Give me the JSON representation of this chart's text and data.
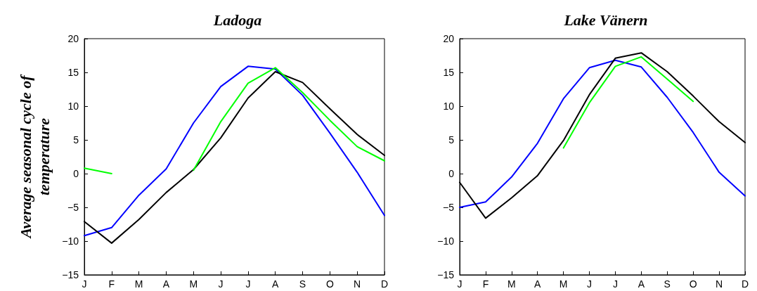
{
  "chart_data": [
    {
      "type": "line",
      "title": "Ladoga",
      "ylabel": "Average seasonal cycle of temperature",
      "categories": [
        "J",
        "F",
        "M",
        "A",
        "M",
        "J",
        "J",
        "A",
        "S",
        "O",
        "N",
        "D"
      ],
      "ylim": [
        -15,
        20
      ],
      "yticks": [
        -15,
        -10,
        -5,
        0,
        5,
        10,
        15,
        20
      ],
      "grid": false,
      "marker": "none",
      "line_style": "solid",
      "series": [
        {
          "color": "#0000ff",
          "values": [
            -9.2,
            -8.0,
            -3.2,
            0.7,
            7.5,
            12.9,
            15.9,
            15.5,
            11.6,
            6.0,
            0.2,
            -6.2
          ]
        },
        {
          "color": "#000000",
          "values": [
            -7.1,
            -10.3,
            -6.8,
            -2.8,
            0.6,
            5.3,
            11.2,
            15.1,
            13.5,
            9.6,
            5.8,
            2.7
          ]
        },
        {
          "color": "#00ff00",
          "values": [
            0.8,
            0.0,
            null,
            null,
            0.5,
            7.7,
            13.4,
            15.7,
            12.0,
            7.9,
            4.0,
            1.9
          ]
        }
      ]
    },
    {
      "type": "line",
      "title": "Lake Vänern",
      "categories": [
        "J",
        "F",
        "M",
        "A",
        "M",
        "J",
        "J",
        "A",
        "S",
        "O",
        "N",
        "D"
      ],
      "ylim": [
        -15,
        20
      ],
      "yticks": [
        -15,
        -10,
        -5,
        0,
        5,
        10,
        15,
        20
      ],
      "grid": false,
      "marker": "none",
      "line_style": "solid",
      "series": [
        {
          "color": "#0000ff",
          "values": [
            -5.0,
            -4.2,
            -0.5,
            4.5,
            11.1,
            15.7,
            16.8,
            15.8,
            11.3,
            6.1,
            0.2,
            -3.3
          ]
        },
        {
          "color": "#000000",
          "values": [
            -1.3,
            -6.6,
            -3.6,
            -0.3,
            4.9,
            11.7,
            17.1,
            17.9,
            15.1,
            11.5,
            7.7,
            4.6
          ]
        },
        {
          "color": "#00ff00",
          "values": [
            null,
            null,
            null,
            null,
            3.8,
            10.5,
            15.9,
            17.3,
            14.0,
            10.7,
            null,
            null
          ]
        }
      ]
    }
  ]
}
